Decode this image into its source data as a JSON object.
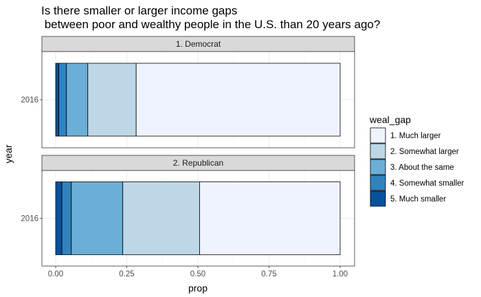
{
  "title_line1": "Is there smaller or larger income gaps",
  "title_line2": " between poor and wealthy people in the U.S. than 20 years ago?",
  "chart_data": {
    "type": "bar",
    "orientation": "horizontal",
    "stacked": true,
    "xlabel": "prop",
    "ylabel": "year",
    "xlim": [
      0,
      1
    ],
    "x_ticks": [
      "0.00",
      "0.25",
      "0.50",
      "0.75",
      "1.00"
    ],
    "x_tick_values": [
      0,
      0.25,
      0.5,
      0.75,
      1
    ],
    "grid": true,
    "legend_position": "right",
    "legend_title": "weal_gap",
    "categories": [
      "5. Much smaller",
      "4. Somewhat smaller",
      "3. About the same",
      "2. Somewhat larger",
      "1. Much larger"
    ],
    "legend_order": [
      "1. Much larger",
      "2. Somewhat larger",
      "3. About the same",
      "4. Somewhat smaller",
      "5. Much smaller"
    ],
    "colors": {
      "1. Much larger": "#eff3ff",
      "2. Somewhat larger": "#bdd7e7",
      "3. About the same": "#6baed6",
      "4. Somewhat smaller": "#3182bd",
      "5. Much smaller": "#08519c"
    },
    "panels": [
      {
        "label": "1. Democrat",
        "y_category": "2016",
        "values": [
          0.011,
          0.027,
          0.075,
          0.17,
          0.717
        ]
      },
      {
        "label": "2. Republican",
        "y_category": "2016",
        "values": [
          0.022,
          0.033,
          0.181,
          0.27,
          0.494
        ]
      }
    ]
  }
}
